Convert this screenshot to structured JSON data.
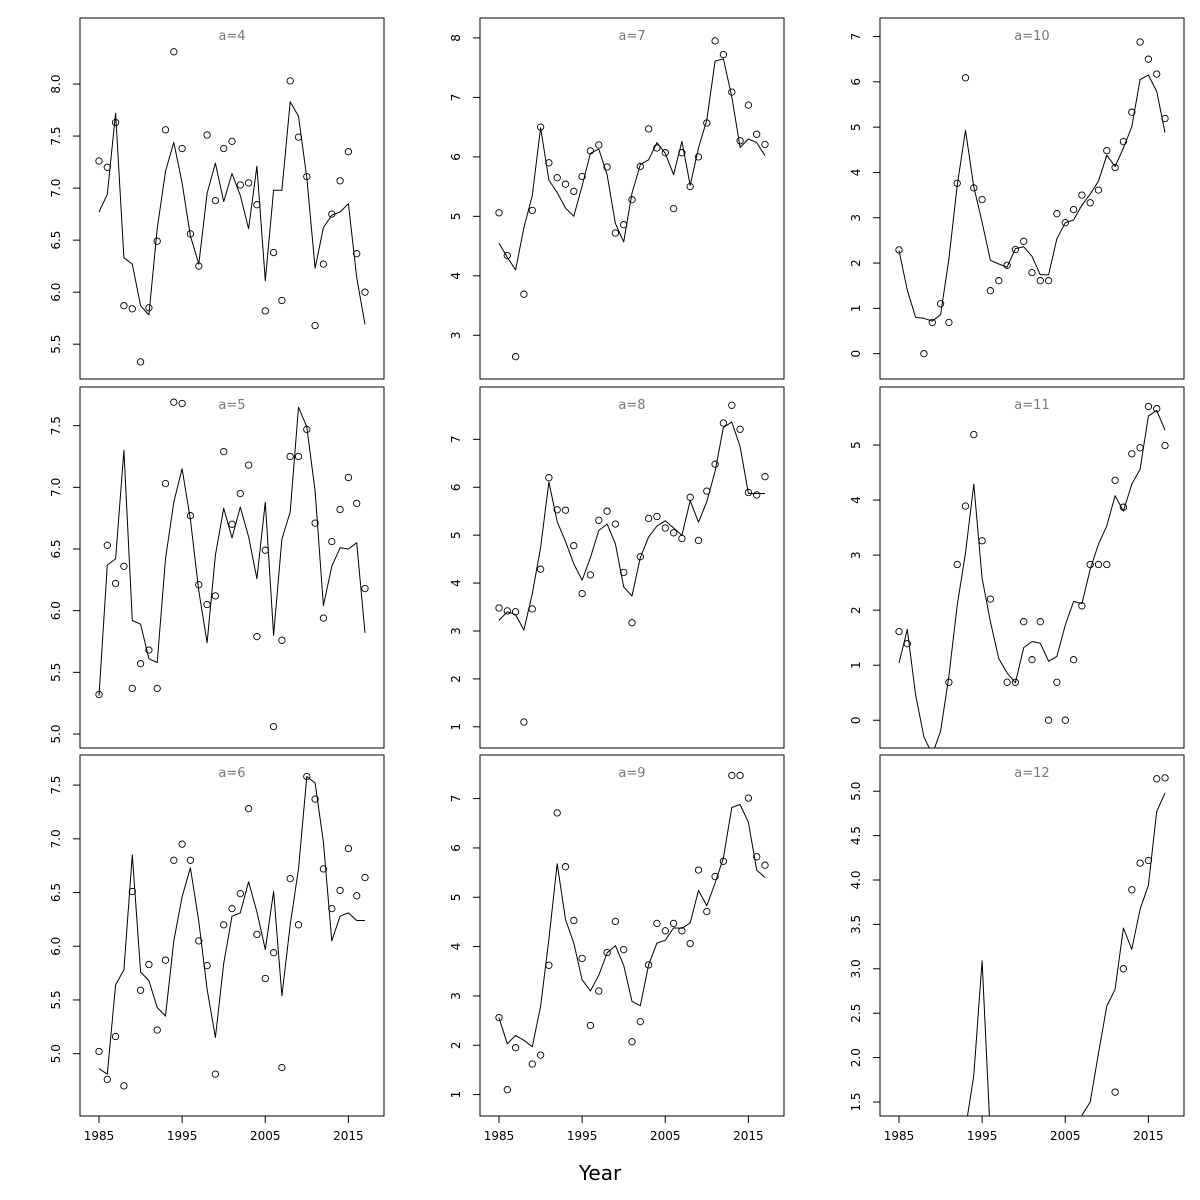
{
  "figure": {
    "xlabel": "Year",
    "colors": {
      "line": "#000000",
      "points": "#000000",
      "panel_label": "#777777"
    }
  },
  "chart_data": [
    {
      "type": "line",
      "title": "a=4",
      "xlim": [
        1985,
        2017
      ],
      "ylim": [
        5.3,
        8.5
      ],
      "xticks": [],
      "yticks": [
        5.5,
        6.0,
        6.5,
        7.0,
        7.5,
        8.0
      ],
      "x": [
        1985,
        1986,
        1987,
        1988,
        1989,
        1990,
        1991,
        1992,
        1993,
        1994,
        1995,
        1996,
        1997,
        1998,
        1999,
        2000,
        2001,
        2002,
        2003,
        2004,
        2005,
        2006,
        2007,
        2008,
        2009,
        2010,
        2011,
        2012,
        2013,
        2014,
        2015,
        2016,
        2017
      ],
      "series": [
        {
          "kind": "line",
          "values": [
            6.77,
            6.94,
            7.72,
            6.33,
            6.27,
            5.87,
            5.78,
            6.61,
            7.16,
            7.44,
            7.05,
            6.54,
            6.27,
            6.95,
            7.24,
            6.87,
            7.14,
            6.93,
            6.61,
            7.21,
            6.11,
            6.98,
            6.98,
            7.83,
            7.69,
            7.1,
            6.23,
            6.62,
            6.74,
            6.77,
            6.85,
            6.14,
            5.69
          ]
        },
        {
          "kind": "points",
          "values": [
            7.26,
            7.2,
            7.63,
            5.87,
            5.84,
            5.33,
            5.85,
            6.49,
            7.56,
            8.31,
            7.38,
            6.56,
            6.25,
            7.51,
            6.88,
            7.38,
            7.45,
            7.03,
            7.05,
            6.84,
            5.82,
            6.38,
            5.92,
            8.03,
            7.49,
            7.11,
            5.68,
            6.27,
            6.75,
            7.07,
            7.35,
            6.37,
            6.0
          ]
        }
      ]
    },
    {
      "type": "line",
      "title": "a=5",
      "xlim": [
        1985,
        2017
      ],
      "ylim": [
        5.0,
        7.7
      ],
      "xticks": [],
      "yticks": [
        5.0,
        5.5,
        6.0,
        6.5,
        7.0,
        7.5
      ],
      "x": [
        1985,
        1986,
        1987,
        1988,
        1989,
        1990,
        1991,
        1992,
        1993,
        1994,
        1995,
        1996,
        1997,
        1998,
        1999,
        2000,
        2001,
        2002,
        2003,
        2004,
        2005,
        2006,
        2007,
        2008,
        2009,
        2010,
        2011,
        2012,
        2013,
        2014,
        2015,
        2016,
        2017
      ],
      "series": [
        {
          "kind": "line",
          "values": [
            5.31,
            6.37,
            6.42,
            7.3,
            5.92,
            5.89,
            5.61,
            5.58,
            6.42,
            6.88,
            7.15,
            6.74,
            6.16,
            5.74,
            6.45,
            6.83,
            6.59,
            6.84,
            6.6,
            6.26,
            6.88,
            5.8,
            6.58,
            6.8,
            7.65,
            7.49,
            6.97,
            6.04,
            6.36,
            6.51,
            6.5,
            6.55,
            5.82
          ]
        },
        {
          "kind": "points",
          "values": [
            5.32,
            6.53,
            6.22,
            6.36,
            5.37,
            5.57,
            5.68,
            5.37,
            7.03,
            7.69,
            7.68,
            6.77,
            6.21,
            6.05,
            6.12,
            7.29,
            6.7,
            6.95,
            7.18,
            5.79,
            6.49,
            5.06,
            5.76,
            7.25,
            7.25,
            7.47,
            6.71,
            5.94,
            6.56,
            6.82,
            7.08,
            6.87,
            6.18
          ]
        }
      ]
    },
    {
      "type": "line",
      "title": "a=6",
      "xlim": [
        1985,
        2017
      ],
      "ylim": [
        4.55,
        7.65
      ],
      "xticks": [
        1985,
        1995,
        2005,
        2015
      ],
      "yticks": [
        5.0,
        5.5,
        6.0,
        6.5,
        7.0,
        7.5
      ],
      "x": [
        1985,
        1986,
        1987,
        1988,
        1989,
        1990,
        1991,
        1992,
        1993,
        1994,
        1995,
        1996,
        1997,
        1998,
        1999,
        2000,
        2001,
        2002,
        2003,
        2004,
        2005,
        2006,
        2007,
        2008,
        2009,
        2010,
        2011,
        2012,
        2013,
        2014,
        2015,
        2016,
        2017
      ],
      "series": [
        {
          "kind": "line",
          "values": [
            4.86,
            4.81,
            5.64,
            5.78,
            6.85,
            5.76,
            5.68,
            5.43,
            5.35,
            6.05,
            6.46,
            6.73,
            6.23,
            5.6,
            5.15,
            5.84,
            6.28,
            6.31,
            6.6,
            6.32,
            5.97,
            6.51,
            5.54,
            6.2,
            6.72,
            7.58,
            7.52,
            6.97,
            6.05,
            6.28,
            6.31,
            6.24,
            6.24
          ]
        },
        {
          "kind": "points",
          "values": [
            5.02,
            4.76,
            5.16,
            4.7,
            6.51,
            5.59,
            5.83,
            5.22,
            5.87,
            6.8,
            6.95,
            6.8,
            6.05,
            5.82,
            4.81,
            6.2,
            6.35,
            6.49,
            7.28,
            6.11,
            5.7,
            5.94,
            4.87,
            6.63,
            6.2,
            7.58,
            7.37,
            6.72,
            6.35,
            6.52,
            6.91,
            6.47,
            6.64
          ]
        }
      ]
    },
    {
      "type": "line",
      "title": "a=7",
      "xlim": [
        1985,
        2017
      ],
      "ylim": [
        2.5,
        8.1
      ],
      "xticks": [],
      "yticks": [
        3,
        4,
        5,
        6,
        7,
        8
      ],
      "x": [
        1985,
        1986,
        1987,
        1988,
        1989,
        1990,
        1991,
        1992,
        1993,
        1994,
        1995,
        1996,
        1997,
        1998,
        1999,
        2000,
        2001,
        2002,
        2003,
        2004,
        2005,
        2006,
        2007,
        2008,
        2009,
        2010,
        2011,
        2012,
        2013,
        2014,
        2015,
        2016,
        2017
      ],
      "series": [
        {
          "kind": "line",
          "values": [
            4.55,
            4.31,
            4.1,
            4.81,
            5.35,
            6.49,
            5.61,
            5.4,
            5.14,
            5.0,
            5.51,
            6.06,
            6.13,
            5.7,
            4.88,
            4.57,
            5.39,
            5.87,
            5.95,
            6.24,
            6.06,
            5.7,
            6.26,
            5.52,
            6.15,
            6.62,
            7.61,
            7.65,
            7.01,
            6.16,
            6.3,
            6.24,
            6.02
          ]
        },
        {
          "kind": "points",
          "values": [
            5.06,
            4.34,
            2.64,
            3.69,
            5.1,
            6.5,
            5.9,
            5.65,
            5.54,
            5.42,
            5.67,
            6.1,
            6.2,
            5.83,
            4.72,
            4.86,
            5.28,
            5.84,
            6.47,
            6.15,
            6.07,
            5.13,
            6.07,
            5.5,
            6.0,
            6.57,
            7.95,
            7.72,
            7.09,
            6.27,
            6.87,
            6.38,
            6.21
          ]
        }
      ]
    },
    {
      "type": "line",
      "title": "a=8",
      "xlim": [
        1985,
        2017
      ],
      "ylim": [
        0.85,
        7.8
      ],
      "xticks": [],
      "yticks": [
        1,
        2,
        3,
        4,
        5,
        6,
        7
      ],
      "x": [
        1985,
        1986,
        1987,
        1988,
        1989,
        1990,
        1991,
        1992,
        1993,
        1994,
        1995,
        1996,
        1997,
        1998,
        1999,
        2000,
        2001,
        2002,
        2003,
        2004,
        2005,
        2006,
        2007,
        2008,
        2009,
        2010,
        2011,
        2012,
        2013,
        2014,
        2015,
        2016,
        2017
      ],
      "series": [
        {
          "kind": "line",
          "values": [
            3.22,
            3.4,
            3.34,
            3.02,
            3.78,
            4.74,
            6.11,
            5.28,
            4.87,
            4.4,
            4.06,
            4.53,
            5.1,
            5.23,
            4.82,
            3.92,
            3.73,
            4.53,
            4.96,
            5.19,
            5.3,
            5.15,
            5.0,
            5.72,
            5.27,
            5.7,
            6.33,
            7.25,
            7.36,
            6.85,
            5.87,
            5.87,
            5.87
          ]
        },
        {
          "kind": "points",
          "values": [
            3.48,
            3.42,
            3.4,
            1.1,
            3.46,
            4.29,
            6.2,
            5.53,
            5.52,
            4.78,
            3.78,
            4.17,
            5.31,
            5.5,
            5.23,
            4.22,
            3.17,
            4.55,
            5.35,
            5.39,
            5.15,
            5.05,
            4.93,
            5.79,
            4.89,
            5.92,
            6.48,
            7.34,
            7.71,
            7.21,
            5.89,
            5.84,
            6.22
          ]
        }
      ]
    },
    {
      "type": "line",
      "title": "a=9",
      "xlim": [
        1985,
        2017
      ],
      "ylim": [
        0.85,
        7.6
      ],
      "xticks": [
        1985,
        1995,
        2005,
        2015
      ],
      "yticks": [
        1,
        2,
        3,
        4,
        5,
        6,
        7
      ],
      "x": [
        1985,
        1986,
        1987,
        1988,
        1989,
        1990,
        1991,
        1992,
        1993,
        1994,
        1995,
        1996,
        1997,
        1998,
        1999,
        2000,
        2001,
        2002,
        2003,
        2004,
        2005,
        2006,
        2007,
        2008,
        2009,
        2010,
        2011,
        2012,
        2013,
        2014,
        2015,
        2016,
        2017
      ],
      "series": [
        {
          "kind": "line",
          "values": [
            2.56,
            2.03,
            2.2,
            2.1,
            1.97,
            2.79,
            4.15,
            5.68,
            4.55,
            4.07,
            3.33,
            3.1,
            3.42,
            3.87,
            4.02,
            3.62,
            2.89,
            2.8,
            3.63,
            4.07,
            4.13,
            4.38,
            4.37,
            4.48,
            5.14,
            4.83,
            5.29,
            5.8,
            6.82,
            6.88,
            6.52,
            5.55,
            5.4
          ]
        },
        {
          "kind": "points",
          "values": [
            2.56,
            1.1,
            1.95,
            null,
            1.62,
            1.8,
            3.62,
            6.71,
            5.62,
            4.53,
            3.76,
            2.4,
            3.1,
            3.88,
            4.51,
            3.94,
            2.07,
            2.48,
            3.63,
            4.47,
            4.32,
            4.47,
            4.32,
            4.06,
            5.55,
            4.71,
            5.42,
            5.73,
            7.47,
            7.47,
            7.01,
            5.82,
            5.65
          ]
        }
      ]
    },
    {
      "type": "line",
      "title": "a=10",
      "xlim": [
        1985,
        2017
      ],
      "ylim": [
        -0.25,
        7.1
      ],
      "xticks": [],
      "yticks": [
        0,
        1,
        2,
        3,
        4,
        5,
        6,
        7
      ],
      "x": [
        1985,
        1986,
        1987,
        1988,
        1989,
        1990,
        1991,
        1992,
        1993,
        1994,
        1995,
        1996,
        1997,
        1998,
        1999,
        2000,
        2001,
        2002,
        2003,
        2004,
        2005,
        2006,
        2007,
        2008,
        2009,
        2010,
        2011,
        2012,
        2013,
        2014,
        2015,
        2016,
        2017
      ],
      "series": [
        {
          "kind": "line",
          "values": [
            2.28,
            1.4,
            0.8,
            0.78,
            0.72,
            0.86,
            2.09,
            3.71,
            4.93,
            3.68,
            2.9,
            2.06,
            1.98,
            1.91,
            2.32,
            2.36,
            2.15,
            1.74,
            1.74,
            2.54,
            2.89,
            2.95,
            3.28,
            3.52,
            3.81,
            4.38,
            4.13,
            4.54,
            5.01,
            6.05,
            6.15,
            5.79,
            4.88
          ]
        },
        {
          "kind": "points",
          "values": [
            2.29,
            null,
            null,
            0.0,
            0.69,
            1.1,
            0.69,
            3.76,
            6.09,
            3.66,
            3.4,
            1.39,
            1.61,
            1.95,
            2.3,
            2.48,
            1.79,
            1.61,
            1.61,
            3.09,
            2.89,
            3.18,
            3.5,
            3.33,
            3.61,
            4.48,
            4.11,
            4.68,
            5.33,
            6.88,
            6.5,
            6.17,
            5.19
          ]
        }
      ]
    },
    {
      "type": "line",
      "title": "a=11",
      "xlim": [
        1985,
        2017
      ],
      "ylim": [
        -0.25,
        5.8
      ],
      "xticks": [],
      "yticks": [
        0,
        1,
        2,
        3,
        4,
        5
      ],
      "x": [
        1985,
        1986,
        1987,
        1988,
        1989,
        1990,
        1991,
        1992,
        1993,
        1994,
        1995,
        1996,
        1997,
        1998,
        1999,
        2000,
        2001,
        2002,
        2003,
        2004,
        2005,
        2006,
        2007,
        2008,
        2009,
        2010,
        2011,
        2012,
        2013,
        2014,
        2015,
        2016,
        2017
      ],
      "series": [
        {
          "kind": "line",
          "values": [
            1.04,
            1.65,
            0.46,
            -0.3,
            -0.62,
            -0.2,
            0.8,
            2.09,
            3.04,
            4.29,
            2.58,
            1.79,
            1.12,
            0.86,
            0.68,
            1.32,
            1.43,
            1.4,
            1.07,
            1.16,
            1.73,
            2.16,
            2.12,
            2.74,
            3.2,
            3.53,
            4.08,
            3.8,
            4.29,
            4.56,
            5.53,
            5.63,
            5.27
          ]
        },
        {
          "kind": "points",
          "values": [
            1.61,
            1.39,
            null,
            null,
            null,
            null,
            0.69,
            2.83,
            3.89,
            5.19,
            3.26,
            2.2,
            null,
            0.69,
            0.69,
            1.79,
            1.1,
            1.79,
            0.0,
            0.69,
            0.0,
            1.1,
            2.08,
            2.83,
            2.83,
            2.83,
            4.36,
            3.87,
            4.84,
            4.95,
            5.7,
            5.66,
            4.99
          ]
        }
      ]
    },
    {
      "type": "line",
      "title": "a=12",
      "xlim": [
        1985,
        2017
      ],
      "ylim": [
        1.5,
        5.25
      ],
      "xticks": [
        1985,
        1995,
        2005,
        2015
      ],
      "yticks": [
        1.5,
        2.0,
        2.5,
        3.0,
        3.5,
        4.0,
        4.5,
        5.0
      ],
      "x": [
        1985,
        1986,
        1987,
        1988,
        1989,
        1990,
        1991,
        1992,
        1993,
        1994,
        1995,
        1996,
        1997,
        1998,
        1999,
        2000,
        2001,
        2002,
        2003,
        2004,
        2005,
        2006,
        2007,
        2008,
        2009,
        2010,
        2011,
        2012,
        2013,
        2014,
        2015,
        2016,
        2017
      ],
      "series": [
        {
          "kind": "line",
          "values": [
            null,
            null,
            null,
            null,
            null,
            null,
            null,
            null,
            1.2,
            1.8,
            3.09,
            1.1,
            null,
            null,
            null,
            null,
            null,
            null,
            null,
            null,
            null,
            null,
            1.35,
            1.5,
            2.05,
            2.58,
            2.77,
            3.46,
            3.22,
            3.67,
            3.94,
            4.77,
            4.98
          ]
        },
        {
          "kind": "points",
          "values": [
            null,
            null,
            null,
            null,
            null,
            null,
            null,
            null,
            null,
            null,
            null,
            null,
            null,
            null,
            null,
            null,
            null,
            null,
            null,
            null,
            null,
            null,
            null,
            null,
            null,
            null,
            1.61,
            3.0,
            3.89,
            4.19,
            4.22,
            5.14,
            5.15
          ]
        }
      ]
    }
  ]
}
